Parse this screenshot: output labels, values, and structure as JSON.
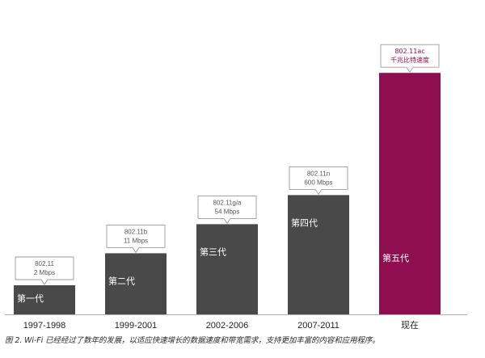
{
  "chart_data": {
    "type": "bar",
    "categories": [
      "1997-1998",
      "1999-2001",
      "2002-2006",
      "2007-2011",
      "现在"
    ],
    "generation_labels": [
      "第一代",
      "第二代",
      "第三代",
      "第四代",
      "第五代"
    ],
    "callouts": [
      {
        "standard": "802.11",
        "speed": "2 Mbps"
      },
      {
        "standard": "802.11b",
        "speed": "11  Mbps"
      },
      {
        "standard": "802.11g/a",
        "speed": "54 Mbps"
      },
      {
        "standard": "802.11n",
        "speed": "600 Mbps"
      },
      {
        "standard": "802.11ac",
        "speed": "千兆比特速度"
      }
    ],
    "values": [
      1,
      2.1,
      3.1,
      4.1,
      8.3
    ],
    "ylim": [
      0,
      9
    ],
    "grid": false,
    "colors": {
      "bar": "#494949",
      "highlight": "#8e0e4f",
      "axis": "#b0b0b0",
      "callout_border": "#9a9a9a"
    }
  },
  "caption": "图 2. Wi-Fi 已经经过了数年的发展，以适应快速增长的数据速度和带宽需求，支持更加丰富的内容和应用程序。"
}
